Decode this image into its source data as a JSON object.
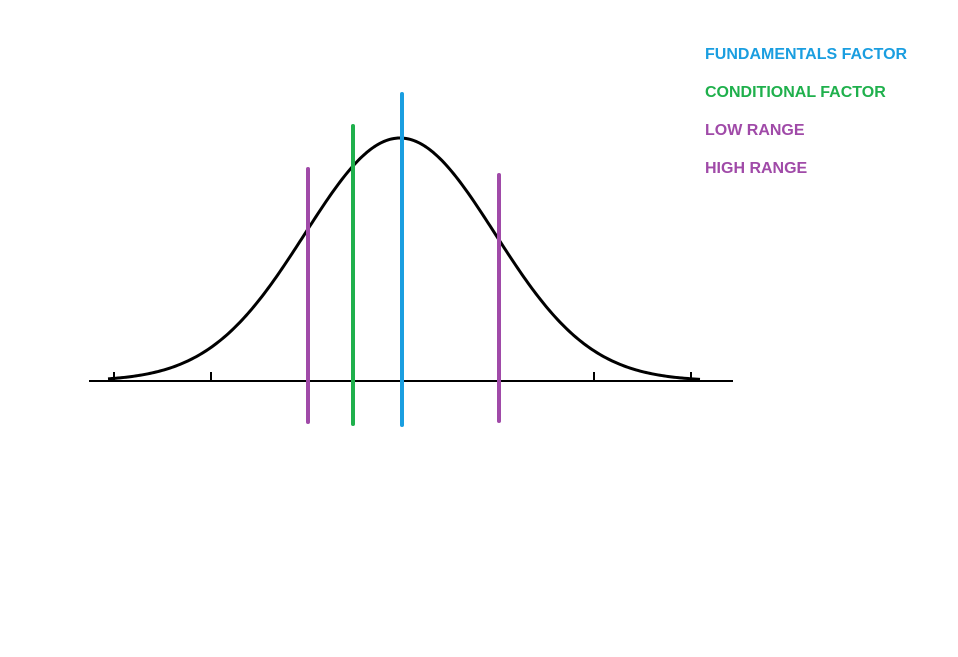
{
  "legend": {
    "items": [
      {
        "label": "FUNDAMENTALS FACTOR",
        "color": "#1a9ee0"
      },
      {
        "label": "CONDITIONAL FACTOR",
        "color": "#1fb04c"
      },
      {
        "label": "LOW RANGE",
        "color": "#a04aa8"
      },
      {
        "label": "HIGH RANGE",
        "color": "#a04aa8"
      }
    ]
  },
  "curve": {
    "type": "normal-distribution",
    "color": "#000000"
  },
  "markers": [
    {
      "name": "low-range",
      "color": "#a04aa8"
    },
    {
      "name": "conditional-factor",
      "color": "#1fb04c"
    },
    {
      "name": "fundamentals-factor",
      "color": "#1a9ee0"
    },
    {
      "name": "high-range",
      "color": "#a04aa8"
    }
  ]
}
